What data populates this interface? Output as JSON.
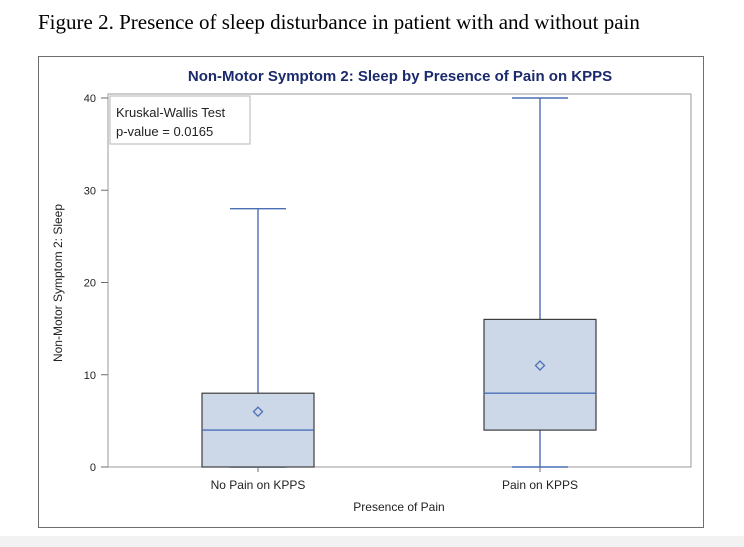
{
  "figure_caption": "Figure 2. Presence of sleep disturbance in patient with and without pain",
  "chart_data": {
    "type": "box",
    "title": "Non-Motor Symptom 2: Sleep by Presence of Pain on KPPS",
    "xlabel": "Presence of Pain",
    "ylabel": "Non-Motor Symptom 2: Sleep",
    "ylim": [
      0,
      40
    ],
    "yticks": [
      0,
      10,
      20,
      30,
      40
    ],
    "grid": false,
    "categories": [
      "No Pain on KPPS",
      "Pain on KPPS"
    ],
    "boxes": [
      {
        "category": "No Pain on KPPS",
        "min": 0,
        "q1": 0,
        "median": 4,
        "q3": 8,
        "max": 28,
        "mean": 6
      },
      {
        "category": "Pain on KPPS",
        "min": 0,
        "q1": 4,
        "median": 8,
        "q3": 16,
        "max": 40,
        "mean": 11
      }
    ],
    "annotation": {
      "line1": "Kruskal-Wallis Test",
      "line2": "p-value = 0.0165",
      "placement": "top-left"
    },
    "colors": {
      "box_fill": "#ccd7e8",
      "box_border": "#3d3d3d",
      "whisker": "#4a6fb5",
      "median": "#4a6fb5",
      "mean_marker": "#4a6fb5",
      "title": "#1a2a6c",
      "axis": "#6e6e6e"
    }
  }
}
